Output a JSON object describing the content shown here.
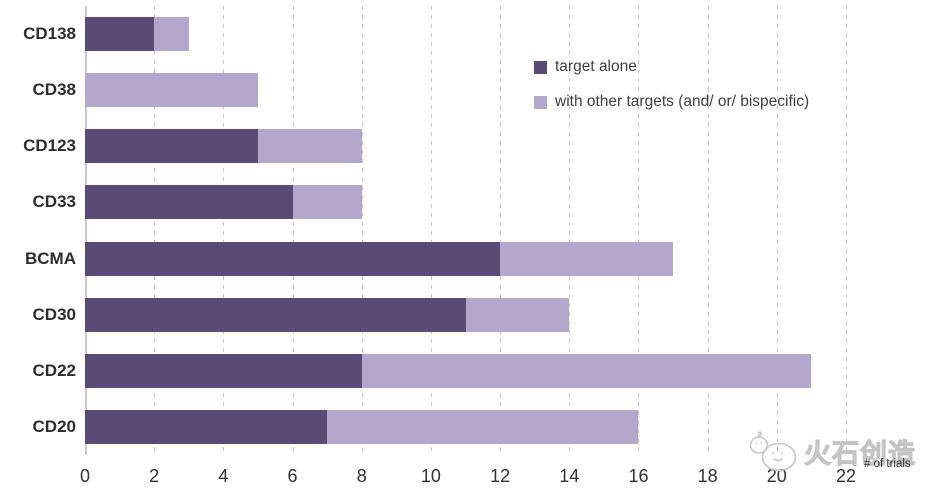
{
  "chart_data": {
    "type": "bar",
    "orientation": "horizontal",
    "stacked": true,
    "title": "",
    "categories": [
      "CD138",
      "CD38",
      "CD123",
      "CD33",
      "BCMA",
      "CD30",
      "CD22",
      "CD20"
    ],
    "series": [
      {
        "name": "target alone",
        "color": "#5a4a76",
        "values": [
          2,
          0,
          5,
          6,
          12,
          11,
          8,
          7
        ]
      },
      {
        "name": "with other targets (and/ or/ bispecific)",
        "color": "#b3a8cc",
        "values": [
          1,
          5,
          3,
          2,
          5,
          3,
          13,
          9
        ]
      }
    ],
    "totals": [
      3,
      5,
      8,
      8,
      17,
      14,
      21,
      16
    ],
    "xlabel": "# of trials",
    "ylabel": "",
    "x_ticks": [
      0,
      2,
      4,
      6,
      8,
      10,
      12,
      14,
      16,
      18,
      20,
      22
    ],
    "xlim": [
      0,
      22
    ],
    "grid": "vertical-dashed",
    "legend_position": "inside-top-right"
  },
  "watermark": {
    "logo": "huoshi-pebbles-logo",
    "text": "火石创造"
  },
  "colors": {
    "series_dark": "#5a4a76",
    "series_light": "#b3a8cc",
    "gridline": "#c6c6c6",
    "axis_line": "#ccc8d8",
    "tick_label": "#333333",
    "category_label": "#2d2d2d",
    "legend_text": "#3f3f3f",
    "watermark": "#c3c3c3",
    "background": "#ffffff"
  }
}
